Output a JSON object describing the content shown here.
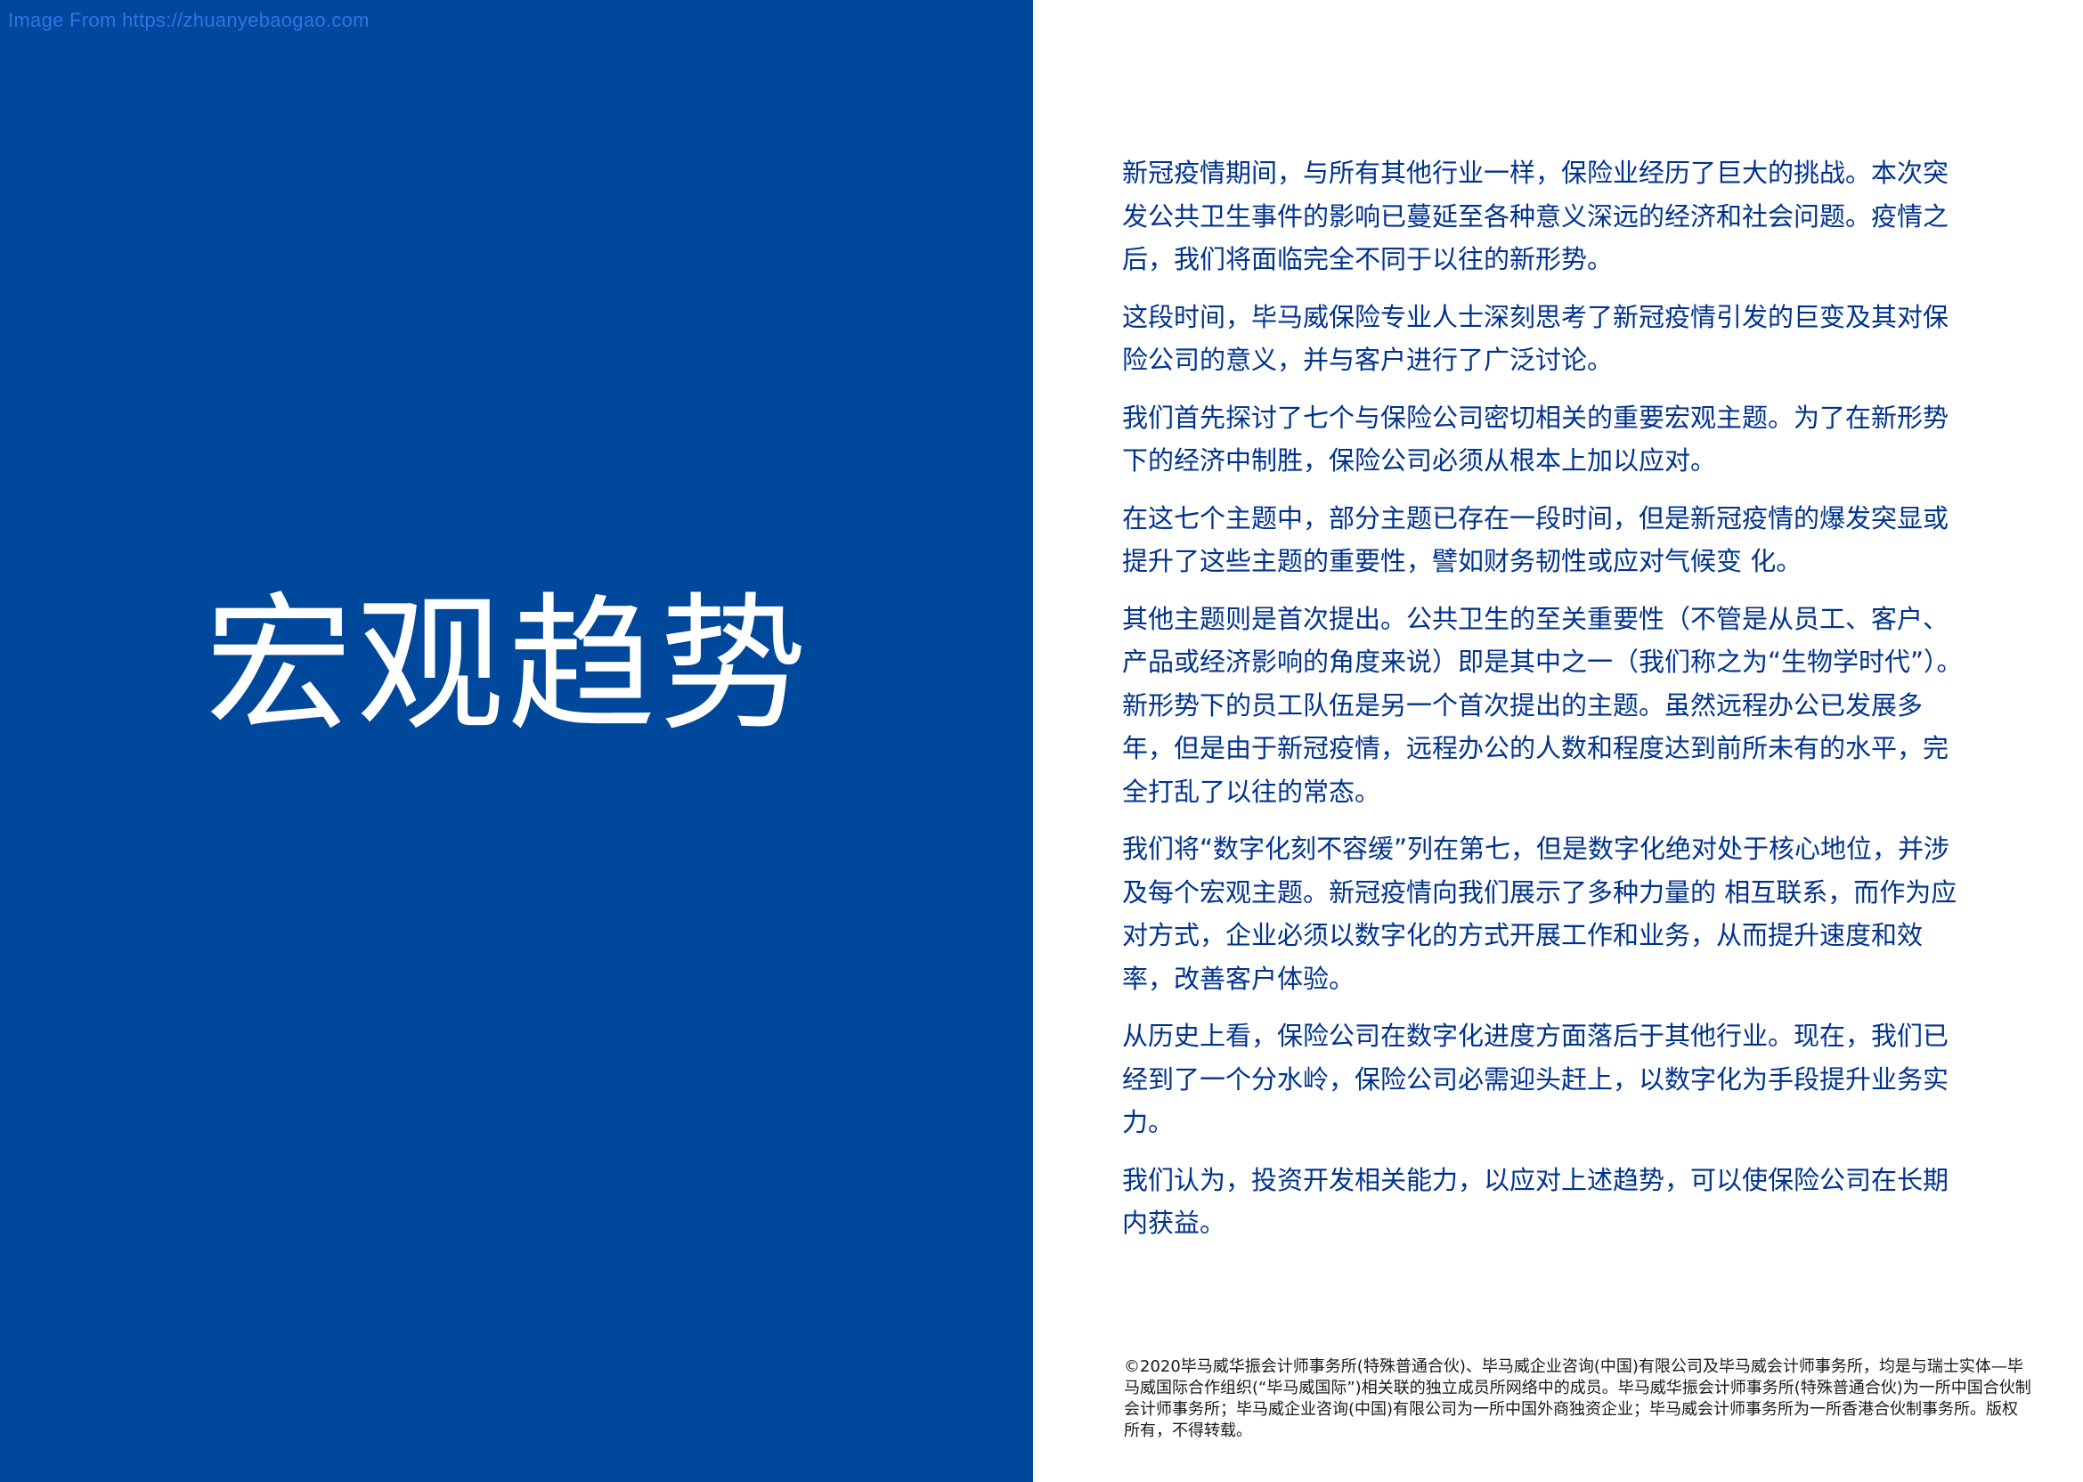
{
  "watermark": "Image From https://zhuanyebaogao.com",
  "title": "宏观趋势",
  "paragraphs": [
    "新冠疫情期间，与所有其他行业一样，保险业经历了巨大的挑战。本次突发公共卫生事件的影响已蔓延至各种意义深远的经济和社会问题。疫情之后，我们将面临完全不同于以往的新形势。",
    "这段时间，毕马威保险专业人士深刻思考了新冠疫情引发的巨变及其对保险公司的意义，并与客户进行了广泛讨论。",
    "我们首先探讨了七个与保险公司密切相关的重要宏观主题。为了在新形势下的经济中制胜，保险公司必须从根本上加以应对。",
    "在这七个主题中，部分主题已存在一段时间，但是新冠疫情的爆发突显或提升了这些主题的重要性，譬如财务韧性或应对气候变 化。",
    "其他主题则是首次提出。公共卫生的至关重要性（不管是从员工、客户、产品或经济影响的角度来说）即是其中之一（我们称之为“生物学时代”）。新形势下的员工队伍是另一个首次提出的主题。虽然远程办公已发展多年，但是由于新冠疫情，远程办公的人数和程度达到前所未有的水平，完全打乱了以往的常态。",
    "我们将“数字化刻不容缓”列在第七，但是数字化绝对处于核心地位，并涉及每个宏观主题。新冠疫情向我们展示了多种力量的 相互联系，而作为应对方式，企业必须以数字化的方式开展工作和业务，从而提升速度和效率，改善客户体验。",
    "从历史上看，保险公司在数字化进度方面落后于其他行业。现在，我们已经到了一个分水岭，保险公司必需迎头赶上，以数字化为手段提升业务实力。",
    "我们认为，投资开发相关能力，以应对上述趋势，可以使保险公司在长期内获益。"
  ],
  "footnote": "©2020毕马威华振会计师事务所(特殊普通合伙)、毕马威企业咨询(中国)有限公司及毕马威会计师事务所，均是与瑞士实体—毕马威国际合作组织(“毕马威国际”)相关联的独立成员所网络中的成员。毕马威华振会计师事务所(特殊普通合伙)为一所中国合伙制会计师事务所；毕马威企业咨询(中国)有限公司为一所中国外商独资企业；毕马威会计师事务所为一所香港合伙制事务所。版权所有，不得转载。",
  "colors": {
    "panel_blue": "#00489b",
    "text_blue": "#00338d",
    "watermark_blue": "#2f74e8"
  }
}
